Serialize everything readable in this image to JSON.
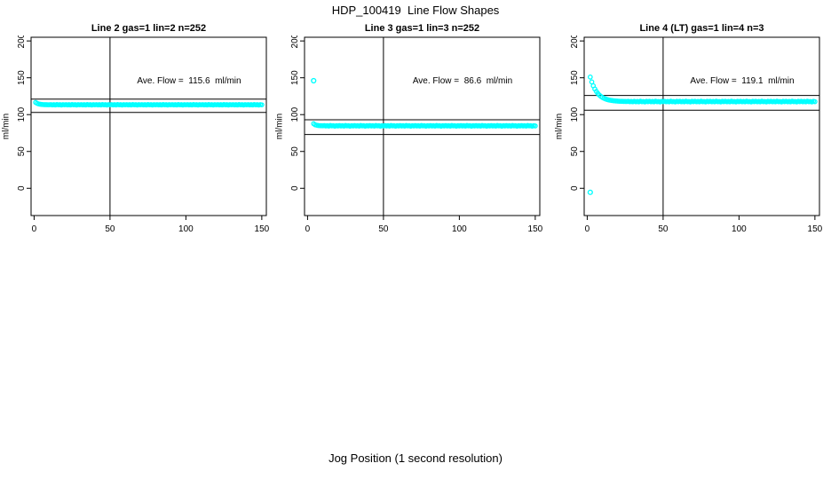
{
  "page": {
    "title": "HDP_100419  Line Flow Shapes",
    "xlabel": "Jog Position (1 second resolution)"
  },
  "colors": {
    "points": "#00ffff",
    "axis": "#000000",
    "text": "#000000",
    "background": "#ffffff"
  },
  "chart_data": [
    {
      "type": "scatter",
      "title": "Line 2 gas=1 lin=2 n=252",
      "line_name": "Line 2",
      "gas": 1,
      "lin": 2,
      "n": 252,
      "ylabel": "ml/min",
      "annotation": "Ave. Flow =  115.6  ml/min",
      "ave_flow": 115.6,
      "x_ticks": [
        0,
        50,
        100,
        150
      ],
      "y_ticks": [
        0,
        50,
        100,
        150,
        200
      ],
      "xlim": [
        -2,
        153
      ],
      "ylim": [
        -37,
        205
      ],
      "grid": false,
      "ref_lines_y": [
        121,
        103
      ],
      "ref_line_x": 50,
      "series": {
        "x0": 1,
        "dx": 1,
        "y": [
          116.5,
          115.3,
          114.5,
          114.1,
          113.8,
          113.6,
          113.5,
          113.5,
          113.4,
          113.4,
          113.6,
          113.2,
          113.5,
          113.1,
          113.7,
          113.3,
          113.5,
          113.0,
          113.6,
          113.3,
          113.6,
          113.2,
          113.5,
          113.1,
          113.7,
          113.3,
          113.5,
          113.0,
          113.6,
          113.3,
          113.6,
          113.2,
          113.5,
          113.1,
          113.7,
          113.3,
          113.5,
          113.0,
          113.6,
          113.3,
          113.6,
          113.2,
          113.5,
          113.1,
          113.7,
          113.3,
          113.5,
          113.0,
          113.6,
          113.3,
          113.6,
          113.2,
          113.5,
          113.1,
          113.7,
          113.3,
          113.5,
          113.0,
          113.6,
          113.3,
          113.6,
          113.2,
          113.5,
          113.1,
          113.7,
          113.3,
          113.5,
          113.0,
          113.6,
          113.3,
          113.6,
          113.2,
          113.5,
          113.1,
          113.7,
          113.3,
          113.5,
          113.0,
          113.6,
          113.3,
          113.6,
          113.2,
          113.5,
          113.1,
          113.7,
          113.3,
          113.5,
          113.0,
          113.6,
          113.3,
          113.6,
          113.2,
          113.5,
          113.1,
          113.7,
          113.3,
          113.5,
          113.0,
          113.6,
          113.3,
          113.6,
          113.2,
          113.5,
          113.1,
          113.7,
          113.3,
          113.5,
          113.0,
          113.6,
          113.3,
          113.6,
          113.2,
          113.5,
          113.1,
          113.7,
          113.3,
          113.5,
          113.0,
          113.6,
          113.3,
          113.6,
          113.2,
          113.5,
          113.1,
          113.7,
          113.3,
          113.5,
          113.0,
          113.6,
          113.3,
          113.6,
          113.2,
          113.5,
          113.1,
          113.7,
          113.3,
          113.5,
          113.0,
          113.6,
          113.3,
          113.6,
          113.2,
          113.5,
          113.1,
          113.7,
          113.3,
          113.5,
          113.0,
          113.6,
          113.3
        ]
      },
      "outliers": []
    },
    {
      "type": "scatter",
      "title": "Line 3 gas=1 lin=3 n=252",
      "line_name": "Line 3",
      "gas": 1,
      "lin": 3,
      "n": 252,
      "ylabel": "ml/min",
      "annotation": "Ave. Flow =  86.6  ml/min",
      "ave_flow": 86.6,
      "x_ticks": [
        0,
        50,
        100,
        150
      ],
      "y_ticks": [
        0,
        50,
        100,
        150,
        200
      ],
      "xlim": [
        -2,
        153
      ],
      "ylim": [
        -37,
        205
      ],
      "grid": false,
      "ref_lines_y": [
        93,
        73
      ],
      "ref_line_x": 50,
      "series": {
        "x0": 4,
        "dx": 1,
        "y": [
          87.6,
          86.2,
          85.6,
          85.2,
          85.0,
          84.9,
          84.8,
          85.1,
          84.6,
          84.9,
          84.4,
          85.2,
          84.7,
          84.9,
          84.3,
          85.0,
          84.6,
          85.1,
          84.6,
          84.9,
          84.4,
          85.2,
          84.7,
          84.9,
          84.3,
          85.0,
          84.6,
          85.1,
          84.6,
          84.9,
          84.4,
          85.2,
          84.7,
          84.9,
          84.3,
          85.0,
          84.6,
          85.1,
          84.6,
          84.9,
          84.4,
          85.2,
          84.7,
          84.9,
          84.3,
          85.0,
          84.6,
          85.1,
          84.6,
          84.9,
          84.4,
          85.2,
          84.7,
          84.9,
          84.3,
          85.0,
          84.6,
          85.1,
          84.6,
          84.9,
          84.4,
          85.2,
          84.7,
          84.9,
          84.3,
          85.0,
          84.6,
          85.1,
          84.6,
          84.9,
          84.4,
          85.2,
          84.7,
          84.9,
          84.3,
          85.0,
          84.6,
          85.1,
          84.6,
          84.9,
          84.4,
          85.2,
          84.7,
          84.9,
          84.3,
          85.0,
          84.6,
          85.1,
          84.6,
          84.9,
          84.4,
          85.2,
          84.7,
          84.9,
          84.3,
          85.0,
          84.6,
          85.1,
          84.6,
          84.9,
          84.4,
          85.2,
          84.7,
          84.9,
          84.3,
          85.0,
          84.6,
          85.1,
          84.6,
          84.9,
          84.4,
          85.2,
          84.7,
          84.9,
          84.3,
          85.0,
          84.6,
          85.1,
          84.6,
          84.9,
          84.4,
          85.2,
          84.7,
          84.9,
          84.3,
          85.0,
          84.6,
          85.1,
          84.6,
          84.9,
          84.4,
          85.2,
          84.7,
          84.9,
          84.3,
          85.0,
          84.6,
          85.1,
          84.6,
          84.9,
          84.4,
          85.2,
          84.7,
          84.9,
          84.3,
          85.0,
          84.6
        ]
      },
      "outliers": [
        [
          4,
          146
        ]
      ]
    },
    {
      "type": "scatter",
      "title": "Line 4 (LT) gas=1 lin=4 n=3",
      "line_name": "Line 4 (LT)",
      "gas": 1,
      "lin": 4,
      "n": 3,
      "ylabel": "ml/min",
      "annotation": "Ave. Flow =  119.1  ml/min",
      "ave_flow": 119.1,
      "x_ticks": [
        0,
        50,
        100,
        150
      ],
      "y_ticks": [
        0,
        50,
        100,
        150,
        200
      ],
      "xlim": [
        -2,
        153
      ],
      "ylim": [
        -37,
        205
      ],
      "grid": false,
      "ref_lines_y": [
        126,
        106
      ],
      "ref_line_x": 50,
      "series": {
        "x0": 2,
        "dx": 1,
        "y": [
          151.0,
          144.4,
          139.1,
          134.8,
          131.4,
          128.7,
          126.5,
          124.7,
          123.3,
          122.2,
          121.3,
          120.6,
          120.0,
          119.6,
          119.2,
          118.9,
          118.7,
          118.5,
          118.3,
          118.2,
          118.1,
          118.0,
          117.9,
          117.9,
          117.8,
          118.0,
          117.6,
          117.9,
          117.5,
          118.1,
          117.5,
          117.9,
          117.4,
          118.2,
          117.6,
          117.8,
          117.3,
          118.0,
          117.6,
          118.1,
          117.5,
          117.9,
          117.4,
          118.2,
          117.6,
          117.8,
          117.3,
          118.0,
          117.6,
          118.1,
          117.5,
          117.9,
          117.4,
          118.2,
          117.6,
          117.8,
          117.3,
          118.0,
          117.6,
          118.1,
          117.5,
          117.9,
          117.4,
          118.2,
          117.6,
          117.8,
          117.3,
          118.0,
          117.6,
          118.1,
          117.5,
          117.9,
          117.4,
          118.2,
          117.6,
          117.8,
          117.3,
          118.0,
          117.6,
          118.1,
          117.5,
          117.9,
          117.4,
          118.2,
          117.6,
          117.8,
          117.3,
          118.0,
          117.6,
          118.1,
          117.5,
          117.9,
          117.4,
          118.2,
          117.6,
          117.8,
          117.3,
          118.0,
          117.6,
          118.1,
          117.5,
          117.9,
          117.4,
          118.2,
          117.6,
          117.8,
          117.3,
          118.0,
          117.6,
          118.1,
          117.5,
          117.9,
          117.4,
          118.2,
          117.6,
          117.8,
          117.3,
          118.0,
          117.6,
          118.1,
          117.5,
          117.9,
          117.4,
          118.2,
          117.6,
          117.8,
          117.3,
          118.0,
          117.6,
          118.1,
          117.5,
          117.9,
          117.4,
          118.2,
          117.6,
          117.8,
          117.3,
          118.0,
          117.6,
          118.1,
          117.5,
          117.9,
          117.4,
          118.2,
          117.6,
          117.8,
          117.3,
          118.0,
          117.6
        ]
      },
      "outliers": [
        [
          2,
          -5.5
        ]
      ]
    }
  ]
}
